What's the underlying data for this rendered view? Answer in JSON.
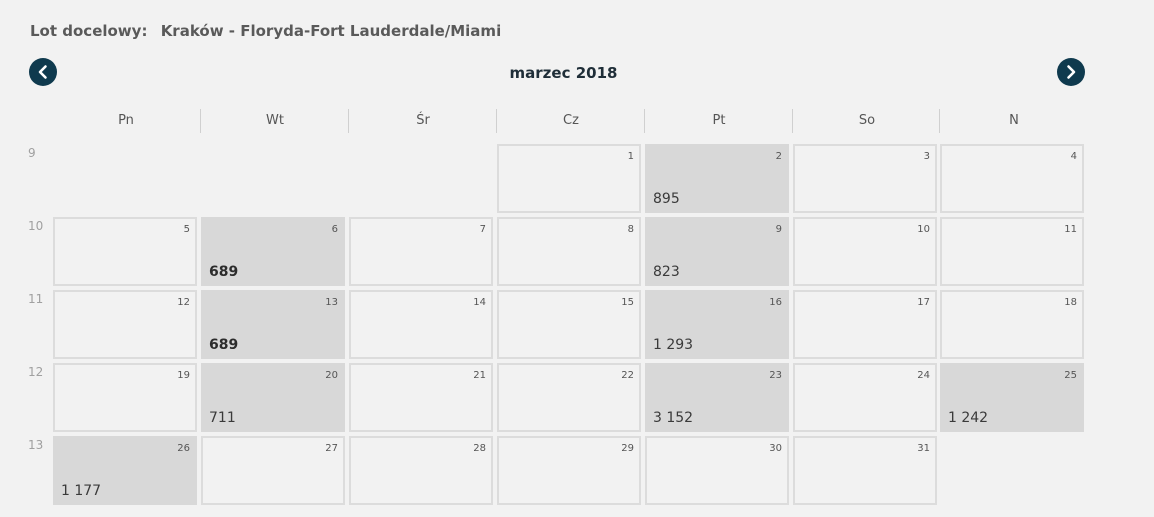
{
  "header": {
    "route_label": "Lot docelowy:",
    "route_value": "Kraków - Floryda-Fort Lauderdale/Miami"
  },
  "calendar": {
    "month_title": "marzec 2018",
    "prev_icon": "chevron-left-icon",
    "next_icon": "chevron-right-icon",
    "accent_color": "#0f3a4e",
    "weekdays": [
      "Pn",
      "Wt",
      "Śr",
      "Cz",
      "Pt",
      "So",
      "N"
    ],
    "weeks": [
      {
        "number": "9",
        "days": [
          null,
          null,
          null,
          {
            "day": "1",
            "price": ""
          },
          {
            "day": "2",
            "price": "895"
          },
          {
            "day": "3",
            "price": ""
          },
          {
            "day": "4",
            "price": ""
          }
        ]
      },
      {
        "number": "10",
        "days": [
          {
            "day": "5",
            "price": ""
          },
          {
            "day": "6",
            "price": "689",
            "highlight": true
          },
          {
            "day": "7",
            "price": ""
          },
          {
            "day": "8",
            "price": ""
          },
          {
            "day": "9",
            "price": "823"
          },
          {
            "day": "10",
            "price": ""
          },
          {
            "day": "11",
            "price": ""
          }
        ]
      },
      {
        "number": "11",
        "days": [
          {
            "day": "12",
            "price": ""
          },
          {
            "day": "13",
            "price": "689",
            "highlight": true
          },
          {
            "day": "14",
            "price": ""
          },
          {
            "day": "15",
            "price": ""
          },
          {
            "day": "16",
            "price": "1 293"
          },
          {
            "day": "17",
            "price": ""
          },
          {
            "day": "18",
            "price": ""
          }
        ]
      },
      {
        "number": "12",
        "days": [
          {
            "day": "19",
            "price": ""
          },
          {
            "day": "20",
            "price": "711"
          },
          {
            "day": "21",
            "price": ""
          },
          {
            "day": "22",
            "price": ""
          },
          {
            "day": "23",
            "price": "3 152"
          },
          {
            "day": "24",
            "price": ""
          },
          {
            "day": "25",
            "price": "1 242"
          }
        ]
      },
      {
        "number": "13",
        "days": [
          {
            "day": "26",
            "price": "1 177"
          },
          {
            "day": "27",
            "price": ""
          },
          {
            "day": "28",
            "price": ""
          },
          {
            "day": "29",
            "price": ""
          },
          {
            "day": "30",
            "price": ""
          },
          {
            "day": "31",
            "price": ""
          },
          null
        ]
      }
    ]
  }
}
